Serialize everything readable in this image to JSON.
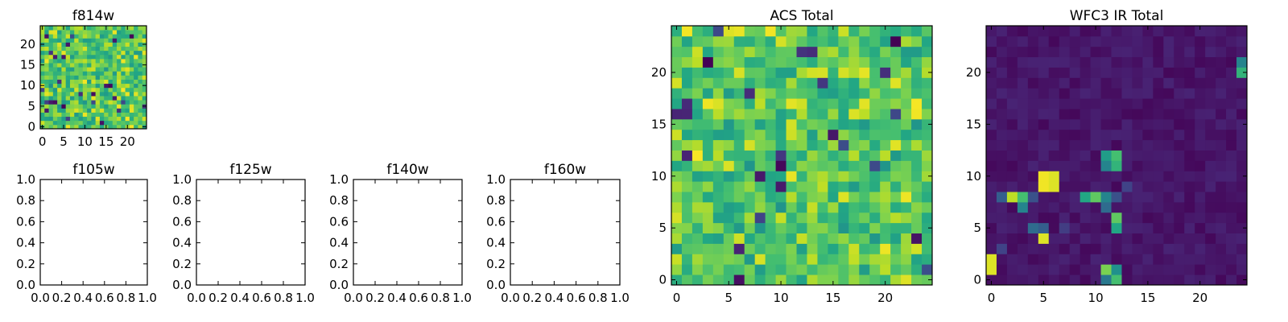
{
  "colormap": "viridis",
  "chart_data": [
    {
      "id": "f814w",
      "type": "heatmap",
      "title": "f814w",
      "xlim": [
        -0.5,
        24.5
      ],
      "ylim": [
        -0.5,
        24.5
      ],
      "xticks": [
        0,
        5,
        10,
        15,
        20
      ],
      "yticks": [
        0,
        5,
        10,
        15,
        20
      ],
      "grid_size": [
        25,
        25
      ],
      "value_range": [
        0,
        1
      ],
      "field": "mostly green/yellow noise with scattered dark low-value pixels"
    },
    {
      "id": "f105w",
      "type": "empty",
      "title": "f105w",
      "xlim": [
        0.0,
        1.0
      ],
      "ylim": [
        0.0,
        1.0
      ],
      "xticks": [
        "0.0",
        "0.2",
        "0.4",
        "0.6",
        "0.8",
        "1.0"
      ],
      "yticks": [
        "0.0",
        "0.2",
        "0.4",
        "0.6",
        "0.8",
        "1.0"
      ]
    },
    {
      "id": "f125w",
      "type": "empty",
      "title": "f125w",
      "xlim": [
        0.0,
        1.0
      ],
      "ylim": [
        0.0,
        1.0
      ],
      "xticks": [
        "0.0",
        "0.2",
        "0.4",
        "0.6",
        "0.8",
        "1.0"
      ],
      "yticks": [
        "0.0",
        "0.2",
        "0.4",
        "0.6",
        "0.8",
        "1.0"
      ]
    },
    {
      "id": "f140w",
      "type": "empty",
      "title": "f140w",
      "xlim": [
        0.0,
        1.0
      ],
      "ylim": [
        0.0,
        1.0
      ],
      "xticks": [
        "0.0",
        "0.2",
        "0.4",
        "0.6",
        "0.8",
        "1.0"
      ],
      "yticks": [
        "0.0",
        "0.2",
        "0.4",
        "0.6",
        "0.8",
        "1.0"
      ]
    },
    {
      "id": "f160w",
      "type": "empty",
      "title": "f160w",
      "xlim": [
        0.0,
        1.0
      ],
      "ylim": [
        0.0,
        1.0
      ],
      "xticks": [
        "0.0",
        "0.2",
        "0.4",
        "0.6",
        "0.8",
        "1.0"
      ],
      "yticks": [
        "0.0",
        "0.2",
        "0.4",
        "0.6",
        "0.8",
        "1.0"
      ]
    },
    {
      "id": "acs_total",
      "type": "heatmap",
      "title": "ACS Total",
      "xlim": [
        -0.5,
        24.5
      ],
      "ylim": [
        -0.5,
        24.5
      ],
      "xticks": [
        0,
        5,
        10,
        15,
        20
      ],
      "yticks": [
        0,
        5,
        10,
        15,
        20
      ],
      "grid_size": [
        25,
        25
      ],
      "value_range": [
        0,
        1
      ],
      "field": "mostly green/yellow noise with scattered dark low-value pixels"
    },
    {
      "id": "wfc3_ir_total",
      "type": "heatmap",
      "title": "WFC3 IR Total",
      "xlim": [
        -0.5,
        24.5
      ],
      "ylim": [
        -0.5,
        24.5
      ],
      "xticks": [
        0,
        5,
        10,
        15,
        20
      ],
      "yticks": [
        0,
        5,
        10,
        15,
        20
      ],
      "grid_size": [
        25,
        25
      ],
      "value_range": [
        0,
        1
      ],
      "background_level": 0.05,
      "bright_pixels": [
        {
          "x": 0,
          "y": 1,
          "v": 0.95
        },
        {
          "x": 0,
          "y": 2,
          "v": 0.95
        },
        {
          "x": 5,
          "y": 9,
          "v": 0.98
        },
        {
          "x": 5,
          "y": 10,
          "v": 0.98
        },
        {
          "x": 6,
          "y": 9,
          "v": 0.95
        },
        {
          "x": 6,
          "y": 10,
          "v": 0.95
        },
        {
          "x": 2,
          "y": 8,
          "v": 0.9
        },
        {
          "x": 3,
          "y": 8,
          "v": 0.7
        },
        {
          "x": 3,
          "y": 7,
          "v": 0.45
        },
        {
          "x": 1,
          "y": 8,
          "v": 0.3
        },
        {
          "x": 4,
          "y": 8,
          "v": 0.25
        },
        {
          "x": 10,
          "y": 8,
          "v": 0.75
        },
        {
          "x": 9,
          "y": 8,
          "v": 0.6
        },
        {
          "x": 11,
          "y": 8,
          "v": 0.45
        },
        {
          "x": 12,
          "y": 8,
          "v": 0.25
        },
        {
          "x": 12,
          "y": 6,
          "v": 0.75
        },
        {
          "x": 12,
          "y": 5,
          "v": 0.6
        },
        {
          "x": 11,
          "y": 7,
          "v": 0.35
        },
        {
          "x": 11,
          "y": 12,
          "v": 0.55
        },
        {
          "x": 12,
          "y": 12,
          "v": 0.7
        },
        {
          "x": 11,
          "y": 11,
          "v": 0.45
        },
        {
          "x": 12,
          "y": 11,
          "v": 0.65
        },
        {
          "x": 5,
          "y": 4,
          "v": 0.95
        },
        {
          "x": 4,
          "y": 5,
          "v": 0.35
        },
        {
          "x": 5,
          "y": 5,
          "v": 0.3
        },
        {
          "x": 11,
          "y": 1,
          "v": 0.8
        },
        {
          "x": 12,
          "y": 1,
          "v": 0.5
        },
        {
          "x": 11,
          "y": 0,
          "v": 0.4
        },
        {
          "x": 12,
          "y": 0,
          "v": 0.7
        },
        {
          "x": 24,
          "y": 20,
          "v": 0.65
        },
        {
          "x": 24,
          "y": 21,
          "v": 0.45
        },
        {
          "x": 1,
          "y": 3,
          "v": 0.2
        },
        {
          "x": 7,
          "y": 5,
          "v": 0.18
        },
        {
          "x": 13,
          "y": 9,
          "v": 0.2
        }
      ]
    }
  ]
}
